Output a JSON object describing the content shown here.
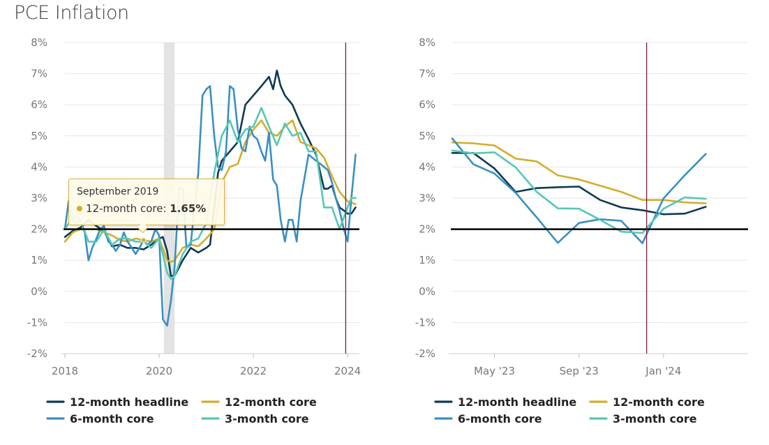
{
  "page": {
    "title": "PCE Inflation"
  },
  "colors": {
    "headline": "#0d3a52",
    "core12": "#d4ad2b",
    "core6": "#3a8fc0",
    "core3": "#56c7b5",
    "target_line": "#000000",
    "event_line": "#7a1f3d",
    "recession_band": "#e3e3e3",
    "grid": "#e6e6e6"
  },
  "tooltip": {
    "date": "September 2019",
    "series": "12-month core",
    "value": "1.65%"
  },
  "chart_data": [
    {
      "type": "line",
      "title": "PCE Inflation",
      "xlabel": "",
      "ylabel": "",
      "ylim": [
        -2,
        8
      ],
      "yticks": [
        "-2%",
        "-1%",
        "0%",
        "1%",
        "2%",
        "3%",
        "4%",
        "5%",
        "6%",
        "7%",
        "8%"
      ],
      "xlim": [
        2018.0,
        2024.25
      ],
      "xticks": [
        {
          "value": 2018,
          "label": "2018"
        },
        {
          "value": 2020,
          "label": "2020"
        },
        {
          "value": 2022,
          "label": "2022"
        },
        {
          "value": 2024,
          "label": "2024"
        }
      ],
      "reference_line": 2,
      "recession_band": [
        2020.1,
        2020.33
      ],
      "event_line": 2023.96,
      "series": [
        {
          "name": "12-month headline",
          "key": "headline",
          "x": [
            2018.0,
            2018.17,
            2018.33,
            2018.5,
            2018.67,
            2018.83,
            2019.0,
            2019.17,
            2019.33,
            2019.5,
            2019.67,
            2019.83,
            2020.0,
            2020.08,
            2020.17,
            2020.25,
            2020.33,
            2020.5,
            2020.67,
            2020.83,
            2021.0,
            2021.08,
            2021.17,
            2021.25,
            2021.33,
            2021.5,
            2021.67,
            2021.83,
            2022.0,
            2022.17,
            2022.33,
            2022.42,
            2022.5,
            2022.58,
            2022.67,
            2022.83,
            2023.0,
            2023.17,
            2023.33,
            2023.5,
            2023.58,
            2023.67,
            2023.75,
            2023.83,
            2023.92,
            2024.0,
            2024.08,
            2024.17
          ],
          "values": [
            1.75,
            1.95,
            2.05,
            2.3,
            2.1,
            1.95,
            1.45,
            1.5,
            1.4,
            1.4,
            1.35,
            1.5,
            1.7,
            1.75,
            1.3,
            0.5,
            0.5,
            1.0,
            1.4,
            1.25,
            1.4,
            1.5,
            2.7,
            3.8,
            4.2,
            4.5,
            4.8,
            6.0,
            6.3,
            6.6,
            6.9,
            6.5,
            7.1,
            6.6,
            6.3,
            6.0,
            5.4,
            4.9,
            4.4,
            3.3,
            3.3,
            3.4,
            3.0,
            2.7,
            2.6,
            2.5,
            2.5,
            2.7
          ]
        },
        {
          "name": "12-month core",
          "key": "core12",
          "x": [
            2018.0,
            2018.17,
            2018.33,
            2018.5,
            2018.67,
            2018.83,
            2019.0,
            2019.17,
            2019.33,
            2019.5,
            2019.67,
            2019.83,
            2020.0,
            2020.17,
            2020.25,
            2020.33,
            2020.5,
            2020.67,
            2020.83,
            2021.0,
            2021.17,
            2021.33,
            2021.5,
            2021.67,
            2021.83,
            2022.0,
            2022.17,
            2022.33,
            2022.5,
            2022.67,
            2022.83,
            2023.0,
            2023.17,
            2023.33,
            2023.5,
            2023.67,
            2023.83,
            2024.0,
            2024.17
          ],
          "values": [
            1.6,
            1.9,
            2.0,
            2.0,
            2.0,
            1.9,
            1.8,
            1.65,
            1.6,
            1.7,
            1.65,
            1.6,
            1.7,
            1.0,
            0.95,
            1.0,
            1.4,
            1.5,
            1.45,
            1.7,
            2.0,
            3.5,
            4.0,
            4.1,
            4.8,
            5.2,
            5.5,
            5.1,
            5.0,
            5.3,
            5.5,
            4.8,
            4.7,
            4.6,
            4.3,
            3.7,
            3.2,
            2.9,
            2.8
          ]
        },
        {
          "name": "6-month core",
          "key": "core6",
          "x": [
            2018.0,
            2018.08,
            2018.17,
            2018.25,
            2018.33,
            2018.42,
            2018.5,
            2018.58,
            2018.67,
            2018.75,
            2018.83,
            2018.92,
            2019.0,
            2019.08,
            2019.17,
            2019.25,
            2019.33,
            2019.42,
            2019.5,
            2019.58,
            2019.67,
            2019.75,
            2019.83,
            2019.92,
            2020.0,
            2020.08,
            2020.17,
            2020.25,
            2020.33,
            2020.42,
            2020.5,
            2020.58,
            2020.67,
            2020.75,
            2020.83,
            2020.92,
            2021.0,
            2021.08,
            2021.17,
            2021.25,
            2021.33,
            2021.42,
            2021.5,
            2021.58,
            2021.67,
            2021.75,
            2021.83,
            2021.92,
            2022.0,
            2022.08,
            2022.17,
            2022.25,
            2022.33,
            2022.42,
            2022.5,
            2022.58,
            2022.67,
            2022.75,
            2022.83,
            2022.92,
            2023.0,
            2023.08,
            2023.17,
            2023.25,
            2023.33,
            2023.42,
            2023.5,
            2023.58,
            2023.67,
            2023.75,
            2023.83,
            2023.92,
            2024.0,
            2024.08,
            2024.17
          ],
          "values": [
            2.0,
            2.9,
            2.3,
            2.2,
            2.3,
            1.9,
            1.0,
            1.4,
            1.7,
            2.0,
            2.1,
            1.6,
            1.5,
            1.3,
            1.5,
            1.9,
            1.6,
            1.4,
            1.2,
            1.4,
            1.65,
            1.5,
            1.6,
            2.0,
            1.8,
            -0.9,
            -1.1,
            -0.3,
            0.8,
            3.3,
            3.3,
            1.4,
            1.5,
            2.7,
            3.8,
            6.3,
            6.5,
            6.6,
            5.0,
            4.0,
            3.9,
            4.5,
            6.6,
            6.5,
            5.2,
            4.6,
            4.5,
            5.3,
            5.0,
            4.9,
            4.5,
            4.2,
            5.1,
            3.6,
            3.4,
            2.3,
            1.6,
            2.3,
            2.3,
            1.6,
            2.9,
            3.6,
            4.4,
            4.3,
            4.2,
            4.1,
            4.0,
            3.9,
            3.5,
            3.0,
            2.6,
            2.0,
            1.6,
            3.0,
            4.4
          ]
        },
        {
          "name": "3-month core",
          "key": "core3",
          "x": [
            2018.0,
            2018.17,
            2018.33,
            2018.5,
            2018.67,
            2018.83,
            2019.0,
            2019.17,
            2019.33,
            2019.5,
            2019.67,
            2019.83,
            2020.0,
            2020.17,
            2020.25,
            2020.33,
            2020.5,
            2020.67,
            2020.83,
            2021.0,
            2021.17,
            2021.33,
            2021.5,
            2021.67,
            2021.83,
            2022.0,
            2022.17,
            2022.33,
            2022.5,
            2022.67,
            2022.83,
            2023.0,
            2023.17,
            2023.33,
            2023.5,
            2023.67,
            2023.83,
            2024.0,
            2024.08,
            2024.17
          ],
          "values": [
            2.0,
            2.4,
            2.3,
            1.6,
            1.6,
            2.0,
            1.5,
            1.7,
            1.7,
            1.6,
            1.6,
            1.4,
            1.7,
            0.6,
            0.4,
            0.5,
            1.2,
            1.6,
            1.7,
            2.2,
            3.8,
            5.0,
            5.5,
            4.8,
            5.2,
            5.3,
            5.9,
            5.3,
            4.7,
            5.4,
            5.0,
            5.1,
            4.5,
            4.5,
            2.7,
            2.7,
            2.0,
            2.7,
            3.0,
            3.0
          ]
        }
      ]
    },
    {
      "type": "line",
      "xlabel": "",
      "ylabel": "",
      "ylim": [
        -2,
        8
      ],
      "yticks": [
        "-2%",
        "-1%",
        "0%",
        "1%",
        "2%",
        "3%",
        "4%",
        "5%",
        "6%",
        "7%",
        "8%"
      ],
      "xlim": [
        0,
        14
      ],
      "xticks": [
        {
          "value": 2.0,
          "label": "May '23"
        },
        {
          "value": 6.0,
          "label": "Sep '23"
        },
        {
          "value": 10.0,
          "label": "Jan '24"
        }
      ],
      "reference_line": 2,
      "event_line": 9.2,
      "series": [
        {
          "name": "12-month headline",
          "key": "headline",
          "x": [
            0,
            1,
            2,
            3,
            4,
            5,
            6,
            7,
            8,
            9,
            10,
            11,
            12
          ],
          "values": [
            4.45,
            4.45,
            3.95,
            3.2,
            3.32,
            3.35,
            3.37,
            2.94,
            2.7,
            2.61,
            2.48,
            2.5,
            2.72
          ]
        },
        {
          "name": "12-month core",
          "key": "core12",
          "x": [
            0,
            1,
            2,
            3,
            4,
            5,
            6,
            7,
            8,
            9,
            10,
            11,
            12
          ],
          "values": [
            4.79,
            4.76,
            4.69,
            4.27,
            4.18,
            3.73,
            3.6,
            3.4,
            3.2,
            2.94,
            2.94,
            2.86,
            2.83
          ]
        },
        {
          "name": "6-month core",
          "key": "core6",
          "x": [
            0,
            1,
            2,
            3,
            4,
            5,
            6,
            7,
            8,
            9,
            10,
            11,
            12
          ],
          "values": [
            4.92,
            4.09,
            3.79,
            3.17,
            2.38,
            1.56,
            2.2,
            2.32,
            2.27,
            1.55,
            2.99,
            3.73,
            4.42
          ]
        },
        {
          "name": "3-month core",
          "key": "core3",
          "x": [
            0,
            1,
            2,
            3,
            4,
            5,
            6,
            7,
            8,
            9,
            10,
            11,
            12
          ],
          "values": [
            4.53,
            4.44,
            4.47,
            3.99,
            3.2,
            2.67,
            2.66,
            2.3,
            1.92,
            1.88,
            2.66,
            3.02,
            2.98
          ]
        }
      ]
    }
  ],
  "legend": [
    {
      "label": "12-month headline",
      "key": "headline"
    },
    {
      "label": "12-month core",
      "key": "core12"
    },
    {
      "label": "6-month core",
      "key": "core6"
    },
    {
      "label": "3-month core",
      "key": "core3"
    }
  ]
}
